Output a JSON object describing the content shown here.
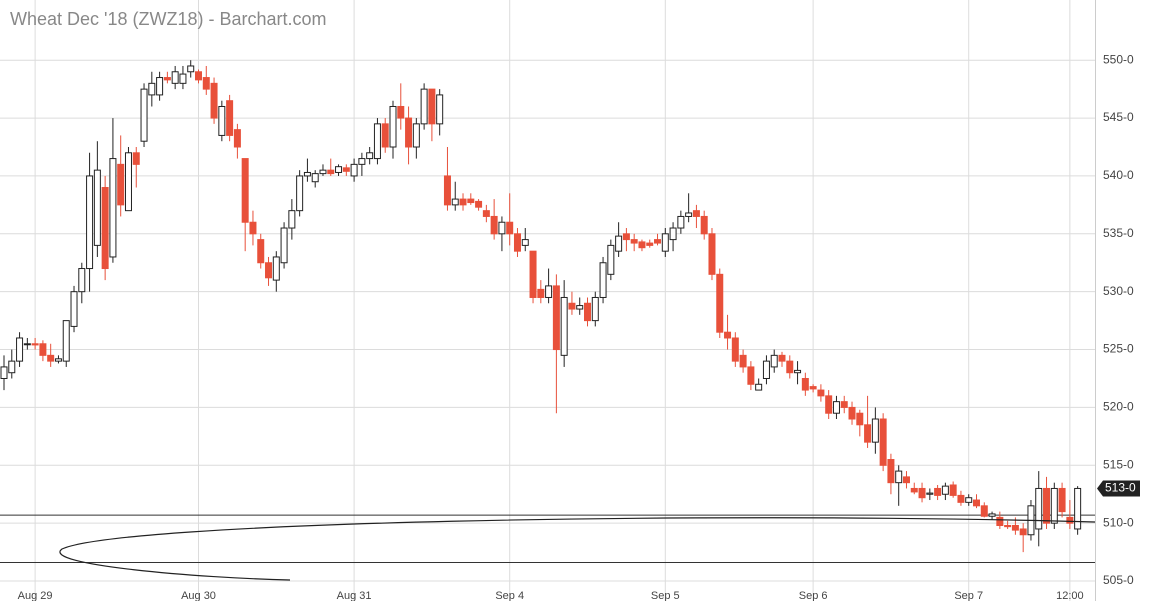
{
  "chart_data": {
    "type": "candlestick",
    "title": "Wheat Dec '18 (ZWZ18) - Barchart.com",
    "categories": [
      null,
      null,
      null,
      null,
      "Aug 29",
      null,
      null,
      null,
      null,
      null,
      null,
      null,
      null,
      null,
      null,
      null,
      null,
      null,
      null,
      null,
      null,
      null,
      null,
      null,
      null,
      "Aug 30",
      null,
      null,
      null,
      null,
      null,
      null,
      null,
      null,
      null,
      null,
      null,
      null,
      null,
      null,
      null,
      null,
      null,
      null,
      null,
      "Aug 31",
      null,
      null,
      null,
      null,
      null,
      null,
      null,
      null,
      null,
      null,
      null,
      null,
      null,
      null,
      null,
      null,
      null,
      null,
      null,
      "Sep 4",
      null,
      null,
      null,
      null,
      null,
      null,
      null,
      null,
      null,
      null,
      null,
      null,
      null,
      null,
      null,
      null,
      null,
      null,
      null,
      "Sep 5",
      null,
      null,
      null,
      null,
      null,
      null,
      null,
      null,
      null,
      null,
      null,
      null,
      null,
      null,
      null,
      null,
      null,
      null,
      "Sep 6",
      null,
      null,
      null,
      null,
      null,
      null,
      null,
      null,
      null,
      null,
      null,
      null,
      null,
      null,
      null,
      null,
      null,
      null,
      null,
      "Sep 7",
      null,
      null,
      null,
      null,
      null,
      null,
      null,
      null,
      null,
      null,
      null,
      null,
      "12:00",
      null
    ],
    "open": [
      522.5,
      523,
      524,
      525.5,
      525.5,
      525.5,
      524.5,
      524,
      524,
      527,
      530,
      532,
      534,
      539,
      533,
      541,
      537,
      542,
      543,
      547,
      547,
      548.5,
      548,
      548,
      549,
      549,
      548.5,
      548,
      543.5,
      546.5,
      544,
      541.5,
      536,
      534.5,
      532.5,
      531,
      532.5,
      535.5,
      537,
      540,
      539.5,
      540.2,
      540.5,
      540.3,
      540.7,
      540,
      541,
      541.5,
      541.5,
      544.5,
      542.5,
      546,
      545,
      542.5,
      544.5,
      547.5,
      544.5,
      540,
      537.5,
      538,
      538,
      537.8,
      537,
      536.5,
      535,
      536,
      535,
      534,
      533.5,
      530.2,
      529.5,
      530.5,
      524.5,
      529,
      528.5,
      529,
      527.5,
      529.5,
      531.5,
      533.5,
      535,
      534.5,
      534.3,
      534.2,
      534.5,
      533.5,
      534.5,
      535.5,
      536.5,
      537,
      536.5,
      535,
      531.5,
      526.5,
      526,
      524.5,
      523.5,
      521.5,
      522.5,
      523.5,
      524.5,
      524,
      523,
      522.5,
      521.8,
      521.5,
      521,
      519.5,
      520.5,
      520,
      519.5,
      518.5,
      517,
      519,
      515.5,
      513.5,
      514,
      513,
      513,
      512.5,
      513,
      512.5,
      513.3,
      512.4,
      511.8,
      512,
      511.5,
      510.6,
      510.5,
      509.8,
      509.8,
      509.5,
      509,
      509.5,
      513,
      510,
      513,
      510.5,
      509.5
    ],
    "high": [
      524.5,
      525,
      526.5,
      526,
      526,
      525.8,
      525.5,
      524.5,
      527.5,
      530.5,
      532.5,
      542,
      543,
      540,
      545,
      543.5,
      542.5,
      542.5,
      548,
      549,
      549,
      549,
      549.5,
      549.5,
      550,
      549.2,
      549.5,
      548.5,
      546.5,
      547,
      544.5,
      541.5,
      537,
      535,
      533,
      533.5,
      536,
      538,
      540.5,
      541.5,
      540.5,
      541,
      541.5,
      541,
      541,
      541.5,
      542,
      542.5,
      545,
      545,
      546.5,
      548,
      546,
      545,
      548,
      547.5,
      547.5,
      542.5,
      539.5,
      538.5,
      538.5,
      538,
      537.5,
      538,
      536.5,
      538.5,
      535.5,
      535.5,
      533.5,
      531,
      532,
      531.5,
      531,
      530,
      529.5,
      529.5,
      530,
      533,
      534.5,
      536,
      535.5,
      535,
      534.5,
      534.5,
      535,
      535.5,
      536,
      537,
      538.5,
      537.5,
      537,
      535.5,
      532,
      528,
      526.5,
      525,
      524,
      522.5,
      524.5,
      525,
      524.8,
      524.5,
      524,
      523,
      522,
      522,
      521.5,
      521,
      521,
      520.5,
      519.8,
      521,
      520,
      519.5,
      516,
      515,
      514.5,
      513.5,
      513.5,
      513,
      513.3,
      513.5,
      513.6,
      512.8,
      512.5,
      512.5,
      511.8,
      511,
      511,
      510.2,
      510.5,
      510,
      512,
      514.5,
      514,
      513.5,
      513.5,
      512,
      513.2
    ],
    "low": [
      521.5,
      522.5,
      523.5,
      525,
      525,
      524,
      523.5,
      523.8,
      523.5,
      526.5,
      529,
      530,
      533,
      531,
      532.5,
      536.5,
      537,
      539,
      542.5,
      546,
      546.5,
      548,
      547.5,
      547.5,
      548.5,
      548,
      547,
      544.5,
      543,
      543,
      541.5,
      533.5,
      534,
      532,
      530.5,
      530,
      532,
      534.5,
      536.5,
      539.5,
      539,
      540,
      540,
      540,
      540,
      539.5,
      540,
      541,
      541,
      542,
      541.5,
      544,
      541,
      541.5,
      544,
      543,
      543.5,
      537,
      537,
      537,
      537.5,
      537,
      536,
      534.5,
      533.5,
      534,
      533,
      533.5,
      529,
      529,
      529,
      519.5,
      523.5,
      528,
      528,
      527,
      527,
      529,
      531,
      533,
      533.5,
      533.5,
      533.5,
      533.8,
      534,
      533,
      533.5,
      535,
      536,
      535.5,
      534.5,
      531,
      526,
      525,
      523.5,
      523,
      521.5,
      521.5,
      522,
      523,
      523.5,
      522.5,
      522,
      521,
      521.3,
      520.5,
      519,
      519,
      519.5,
      518.5,
      517.5,
      516.5,
      516,
      514.5,
      512.5,
      511.5,
      513,
      512.5,
      511.8,
      512,
      512,
      512,
      512.2,
      511.5,
      511.5,
      511.3,
      510.5,
      510.3,
      509.5,
      509.5,
      509,
      507.5,
      508.5,
      508,
      509.5,
      509.5,
      510.5,
      509.5,
      509
    ],
    "close": [
      523.5,
      524,
      526,
      525.5,
      525.4,
      524.5,
      524,
      524.2,
      527.5,
      530,
      532,
      540,
      540.5,
      532,
      541.5,
      537.5,
      542,
      541,
      547.5,
      548,
      548.5,
      548.3,
      549,
      548.8,
      549.5,
      548.3,
      547.5,
      545,
      546,
      543.5,
      542.5,
      536,
      535,
      532.5,
      531.2,
      533,
      535.5,
      537,
      540,
      540.3,
      540.2,
      540.5,
      540.2,
      540.8,
      540.4,
      541,
      541.5,
      542,
      544.5,
      542.5,
      546,
      545,
      542.5,
      544.5,
      547.5,
      544.5,
      547,
      537.5,
      538,
      537.5,
      537.7,
      537.3,
      536.5,
      535,
      536,
      535,
      533.5,
      534.5,
      529.5,
      529.5,
      530.5,
      525,
      529.5,
      528.5,
      528.8,
      527.5,
      529.5,
      532.5,
      534,
      534.8,
      534.5,
      534.2,
      533.8,
      534,
      534.2,
      535,
      535.5,
      536.5,
      536.8,
      536.5,
      535,
      531.5,
      526.5,
      526,
      524,
      523.5,
      522,
      522,
      524,
      524.5,
      524,
      523,
      523.2,
      521.5,
      521.6,
      521,
      519.5,
      520.5,
      520,
      519,
      518.5,
      517,
      519,
      515,
      513.5,
      514.5,
      513.5,
      512.7,
      512.2,
      512.6,
      512.4,
      513.2,
      512.4,
      511.8,
      512.2,
      511.5,
      510.6,
      510.8,
      509.8,
      509.7,
      509.4,
      509,
      511.5,
      513,
      510,
      513,
      511,
      510,
      513
    ],
    "up_color": "#ffffff",
    "down_color": "#e8503a",
    "ylim": [
      504.4,
      555.2
    ],
    "yticks": [
      {
        "value": 505,
        "label": "505-0"
      },
      {
        "value": 510,
        "label": "510-0"
      },
      {
        "value": 515,
        "label": "515-0"
      },
      {
        "value": 520,
        "label": "520-0"
      },
      {
        "value": 525,
        "label": "525-0"
      },
      {
        "value": 530,
        "label": "530-0"
      },
      {
        "value": 535,
        "label": "535-0"
      },
      {
        "value": 540,
        "label": "540-0"
      },
      {
        "value": 545,
        "label": "545-0"
      },
      {
        "value": 550,
        "label": "550-0"
      }
    ],
    "grid": true,
    "horizontal_lines": [
      510.7,
      506.6
    ],
    "last_price": {
      "value": 513,
      "label": "513-0"
    }
  }
}
